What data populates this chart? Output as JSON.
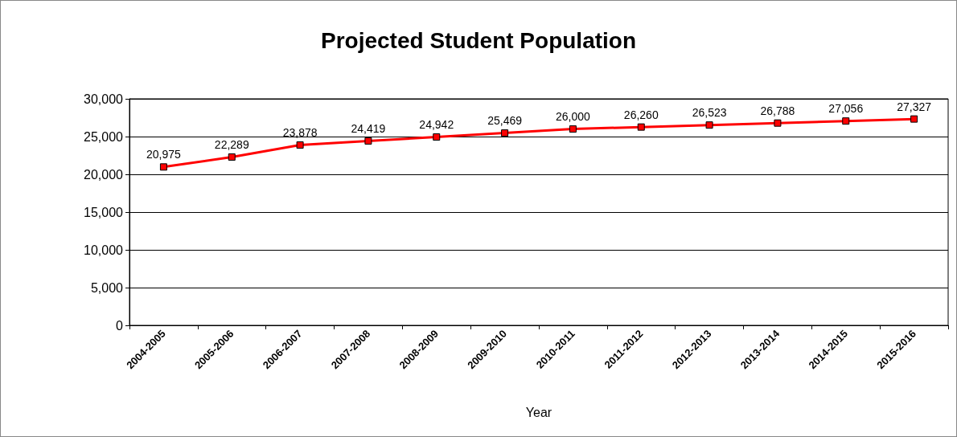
{
  "chart_data": {
    "type": "line",
    "title": "Projected Student Population",
    "xlabel": "Year",
    "categories": [
      "2004-2005",
      "2005-2006",
      "2006-2007",
      "2007-2008",
      "2008-2009",
      "2009-2010",
      "2010-2011",
      "2011-2012",
      "2012-2013",
      "2013-2014",
      "2014-2015",
      "2015-2016"
    ],
    "series": [
      {
        "color": "#ff0000",
        "values": [
          20975,
          22289,
          23878,
          24419,
          24942,
          25469,
          26000,
          26260,
          26523,
          26788,
          27056,
          27327
        ],
        "value_labels": [
          "20,975",
          "22,289",
          "23,878",
          "24,419",
          "24,942",
          "25,469",
          "26,000",
          "26,260",
          "26,523",
          "26,788",
          "27,056",
          "27,327"
        ]
      }
    ],
    "ylim": [
      0,
      30000
    ],
    "yticks": [
      0,
      {
        "value": 5000,
        "label": "5,000"
      },
      {
        "value": 10000,
        "label": "10,000"
      },
      {
        "value": 15000,
        "label": "15,000"
      },
      {
        "value": 20000,
        "label": "20,000"
      },
      {
        "value": 25000,
        "label": "25,000"
      },
      {
        "value": 30000,
        "label": "30,000"
      }
    ],
    "grid": "y",
    "marker": "square",
    "line_style": "solid"
  }
}
